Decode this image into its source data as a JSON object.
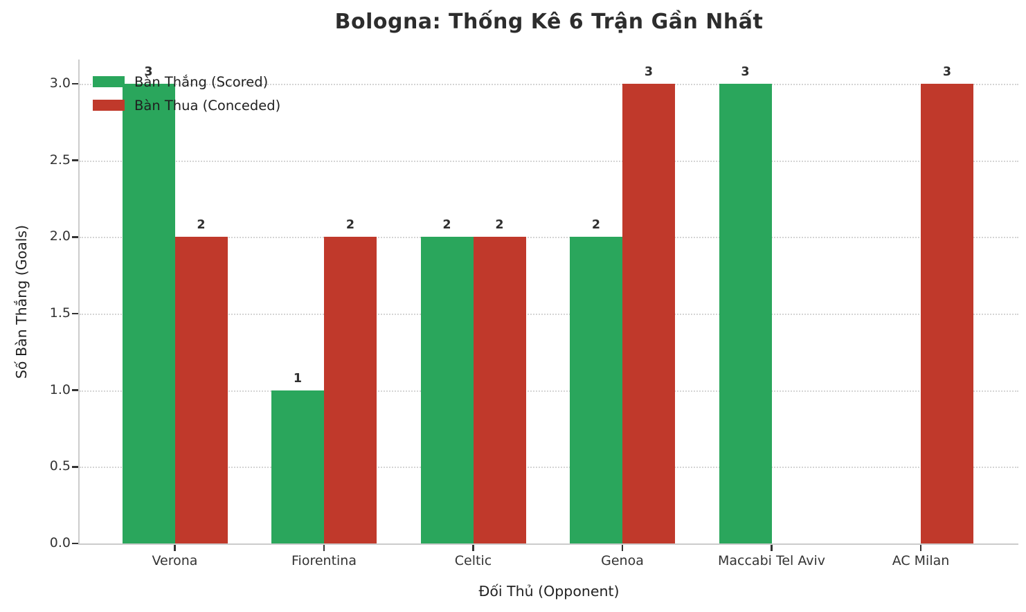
{
  "chart_data": {
    "type": "bar",
    "title": "Bologna: Thống Kê 6 Trận Gần Nhất",
    "xlabel": "Đối Thủ (Opponent)",
    "ylabel": "Số Bàn Thắng (Goals)",
    "categories": [
      "Verona",
      "Fiorentina",
      "Celtic",
      "Genoa",
      "Maccabi Tel Aviv",
      "AC Milan"
    ],
    "series": [
      {
        "name": "Bàn Thắng (Scored)",
        "color": "#2aa65c",
        "values": [
          3,
          1,
          2,
          2,
          3,
          0
        ]
      },
      {
        "name": "Bàn Thua (Conceded)",
        "color": "#c0392b",
        "values": [
          2,
          2,
          2,
          3,
          0,
          3
        ]
      }
    ],
    "ylim": [
      0,
      3.15
    ],
    "yticks": [
      "0.0",
      "0.5",
      "1.0",
      "1.5",
      "2.0",
      "2.5",
      "3.0"
    ],
    "grid": "horizontal-dotted",
    "gridline_color": "#d4d4d4",
    "spine_color": "#cccccc",
    "legend_position": "upper-left",
    "value_label_rule": "shown above each bar, hidden when value is 0"
  }
}
